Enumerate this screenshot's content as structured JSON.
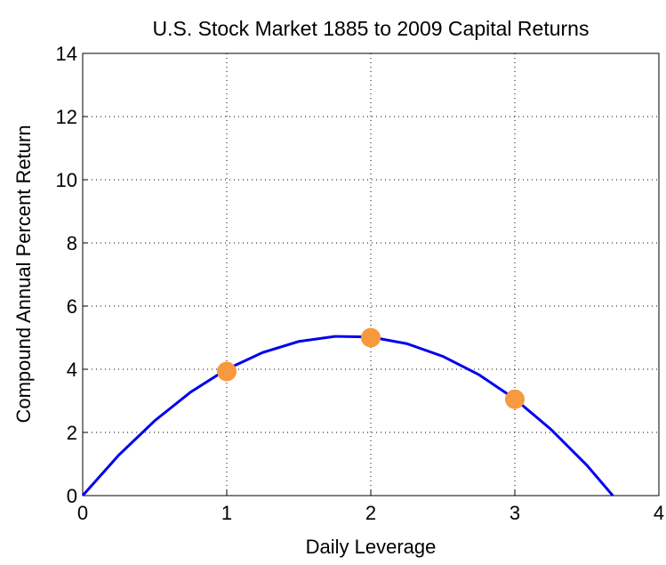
{
  "chart_data": {
    "type": "line",
    "title": "U.S. Stock Market 1885 to 2009 Capital Returns",
    "x_label": "Daily Leverage",
    "y_label": "Compound Annual Percent Return",
    "xlim": [
      0,
      4
    ],
    "xticks": [
      0,
      1,
      2,
      3,
      4
    ],
    "ylim": [
      0,
      14
    ],
    "yticks": [
      0,
      2,
      4,
      6,
      8,
      10,
      12,
      14
    ],
    "grid": true,
    "series": [
      {
        "type": "line",
        "color": "#0000ee",
        "x": [
          0,
          0.25,
          0.5,
          0.75,
          1,
          1.25,
          1.5,
          1.75,
          2,
          2.25,
          2.5,
          2.75,
          3,
          3.25,
          3.5,
          3.68
        ],
        "values": [
          0,
          1.28,
          2.37,
          3.28,
          4.0,
          4.53,
          4.88,
          5.04,
          5.02,
          4.81,
          4.41,
          3.83,
          3.06,
          2.1,
          0.96,
          0
        ]
      },
      {
        "type": "scatter",
        "color": "#f7993e",
        "x": [
          1,
          2,
          3
        ],
        "values": [
          3.93,
          5.0,
          3.05
        ]
      }
    ]
  }
}
